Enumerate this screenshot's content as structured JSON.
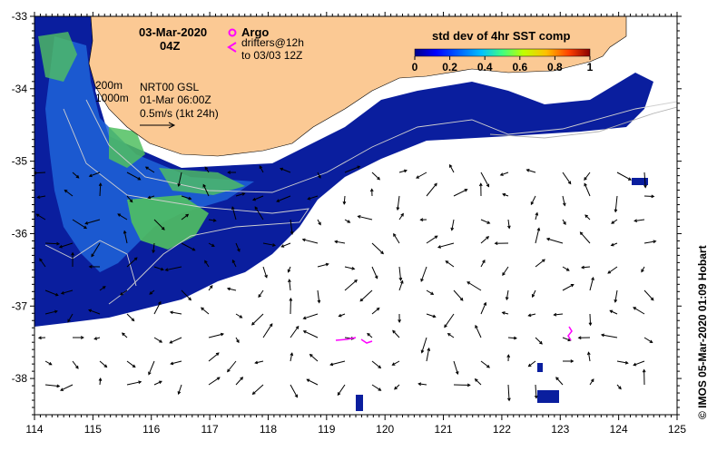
{
  "map": {
    "title_date": "03-Mar-2020",
    "title_time": "04Z",
    "credit": "© IMOS 05-Mar-2020 01:09 Hobart",
    "x_ticks": [
      "114",
      "115",
      "116",
      "117",
      "118",
      "119",
      "120",
      "121",
      "122",
      "123",
      "124",
      "125"
    ],
    "y_ticks": [
      "-33",
      "-34",
      "-35",
      "-36",
      "-37",
      "-38"
    ],
    "x_range": [
      114,
      125
    ],
    "y_range": [
      -38.5,
      -33
    ]
  },
  "legend": {
    "argo_label": "Argo",
    "drifters_label": "drifters@12h",
    "drifters_sub": "to 03/03 12Z",
    "colorbar_title": "std dev of 4hr SST comp",
    "colorbar_ticks": [
      "0",
      "0.2",
      "0.4",
      "0.6",
      "0.8",
      "1"
    ],
    "colorbar_colors": [
      "#000088",
      "#0000ff",
      "#0060ff",
      "#00c0ff",
      "#40ff80",
      "#c0ff00",
      "#ffc000",
      "#ff4000",
      "#880000"
    ],
    "argo_color": "#ff00ff",
    "drifter_color": "#ff00ff"
  },
  "annotations": {
    "contour_200": "200m",
    "contour_1000": "1000m",
    "source": "NRT00 GSL",
    "source_time": "01-Mar 06:00Z",
    "velocity_scale": "0.5m/s (1kt 24h)"
  },
  "colors": {
    "land": "#fbc994",
    "ocean_cloud": "#ffffff",
    "sst_low": "#0a1e9e",
    "sst_mid": "#1e64d8",
    "sst_high": "#50c060",
    "contour": "#d0d0d0"
  }
}
